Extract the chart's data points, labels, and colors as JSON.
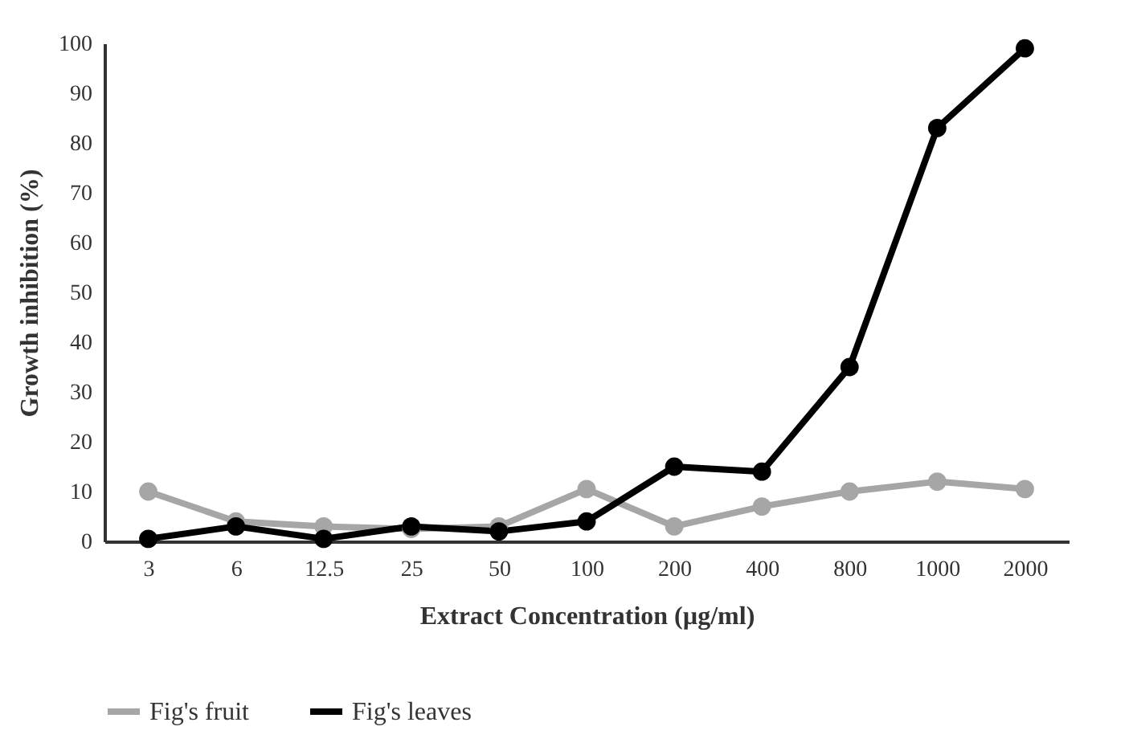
{
  "chart_data": {
    "type": "line",
    "xlabel": "Extract Concentration (µg/ml)",
    "ylabel": "Growth inhibition (%)",
    "categories": [
      "3",
      "6",
      "12.5",
      "25",
      "50",
      "100",
      "200",
      "400",
      "800",
      "1000",
      "2000"
    ],
    "series": [
      {
        "name": "Fig's fruit",
        "color": "#a6a6a6",
        "values": [
          10,
          4,
          3,
          2.5,
          3,
          10.5,
          3,
          7,
          10,
          12,
          10.5
        ]
      },
      {
        "name": "Fig's leaves",
        "color": "#000000",
        "values": [
          0.5,
          3,
          0.5,
          3,
          2,
          4,
          15,
          14,
          35,
          83,
          99
        ]
      }
    ],
    "ylim": [
      0,
      100
    ],
    "yticks": [
      0,
      10,
      20,
      30,
      40,
      50,
      60,
      70,
      80,
      90,
      100
    ],
    "grid": false,
    "legend": "bottom",
    "marker": "circle",
    "line_style": "solid"
  }
}
